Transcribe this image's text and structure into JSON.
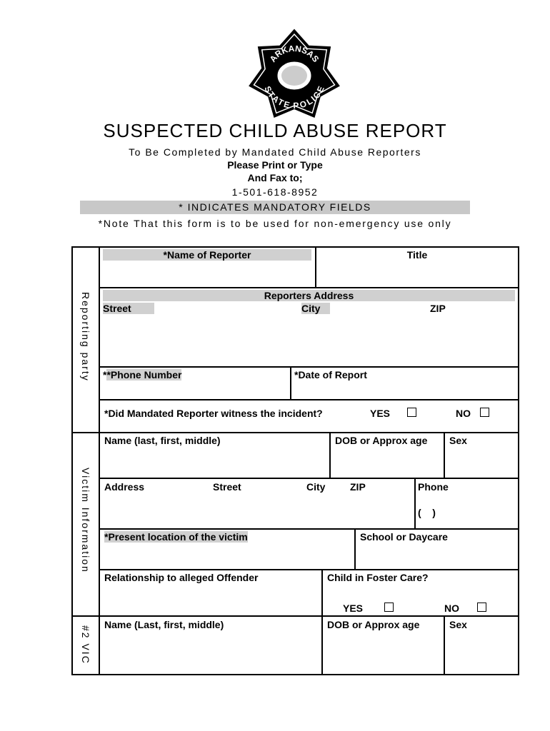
{
  "logo": {
    "top_text": "ARKANSAS",
    "bottom_text": "STATE POLICE"
  },
  "header": {
    "title": "SUSPECTED CHILD ABUSE REPORT",
    "subtitle": "To Be Completed by Mandated Child Abuse Reporters",
    "print_line": "Please Print or Type",
    "fax_line": "And Fax to;",
    "fax_number": "1-501-618-8952",
    "mandatory_band": "* INDICATES MANDATORY FIELDS",
    "note": "*Note That this form is to be used for non-emergency use only"
  },
  "reporting": {
    "section": "Reporting party",
    "name": "*Name of Reporter",
    "title": "Title",
    "address": "Reporters Address",
    "street": "Street",
    "city": "City",
    "zip": "ZIP",
    "phone": "*Phone Number",
    "date": "*Date of Report",
    "witness": "*Did Mandated Reporter witness the incident?",
    "yes": "YES",
    "no": "NO"
  },
  "victim": {
    "section": "Victim Information",
    "name": "Name (last, first, middle)",
    "dob": "DOB or Approx age",
    "sex": "Sex",
    "address": "Address",
    "street": "Street",
    "city": "City",
    "zip": "ZIP",
    "phone": "Phone",
    "phone_paren": "(    )",
    "location": "*Present location of the victim",
    "school": "School or Daycare",
    "relationship": "Relationship to alleged Offender",
    "foster": "Child in Foster Care?",
    "yes": "YES",
    "no": "NO"
  },
  "victim2": {
    "section": "#2 VIC",
    "name": "Name (Last, first, middle)",
    "dob": "DOB or Approx age",
    "sex": "Sex"
  }
}
